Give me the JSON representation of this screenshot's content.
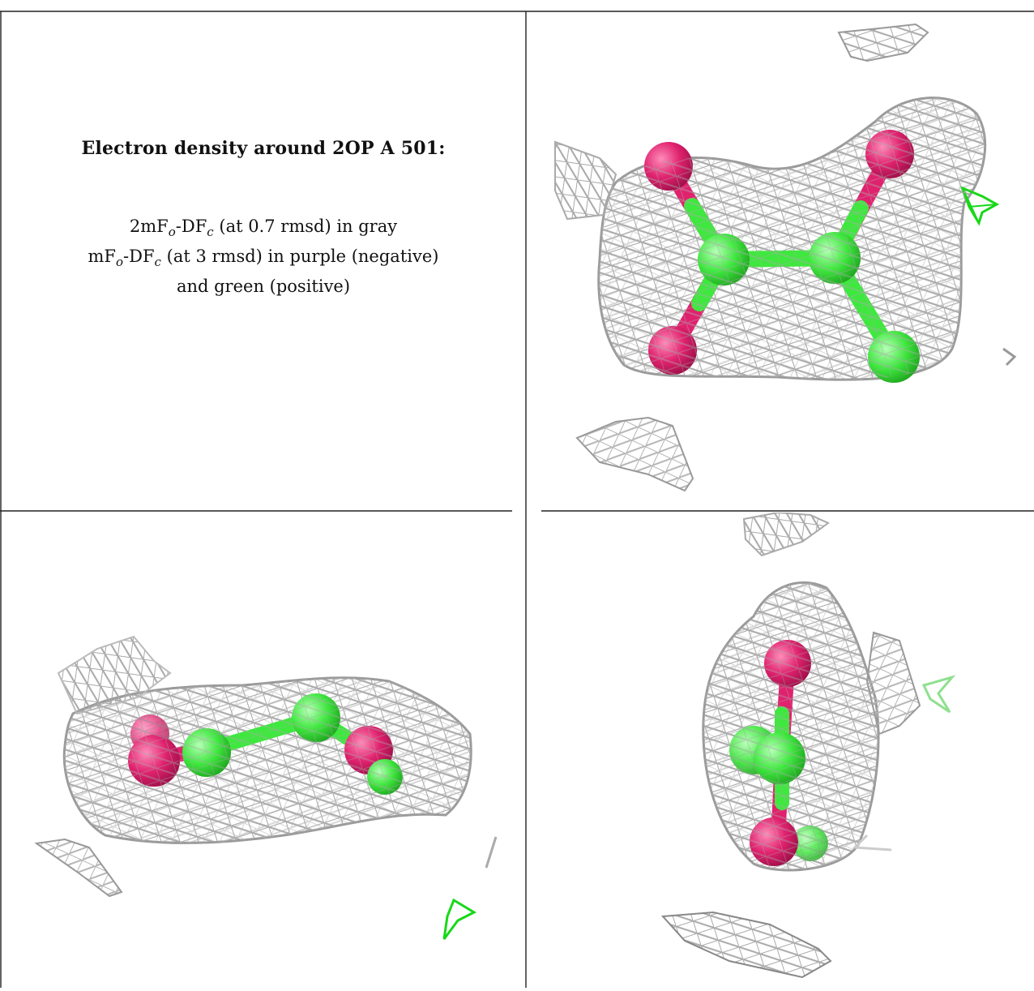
{
  "title": "Electron density around 2OP A 501:",
  "legend": {
    "line1_pre": "2mF",
    "line1_sub1": "o",
    "line1_mid": "-DF",
    "line1_sub2": "c",
    "line1_post": " (at 0.7 rmsd) in gray",
    "line2_pre": "mF",
    "line2_sub1": "o",
    "line2_mid": "-DF",
    "line2_sub2": "c",
    "line2_post": " (at 3 rmsd) in purple (negative)",
    "line3": "and green (positive)"
  },
  "colors": {
    "mesh": "#b8b8b8",
    "oxygen": "#e0226e",
    "carbon": "#3ee83e",
    "positive_density": "#18d818"
  }
}
